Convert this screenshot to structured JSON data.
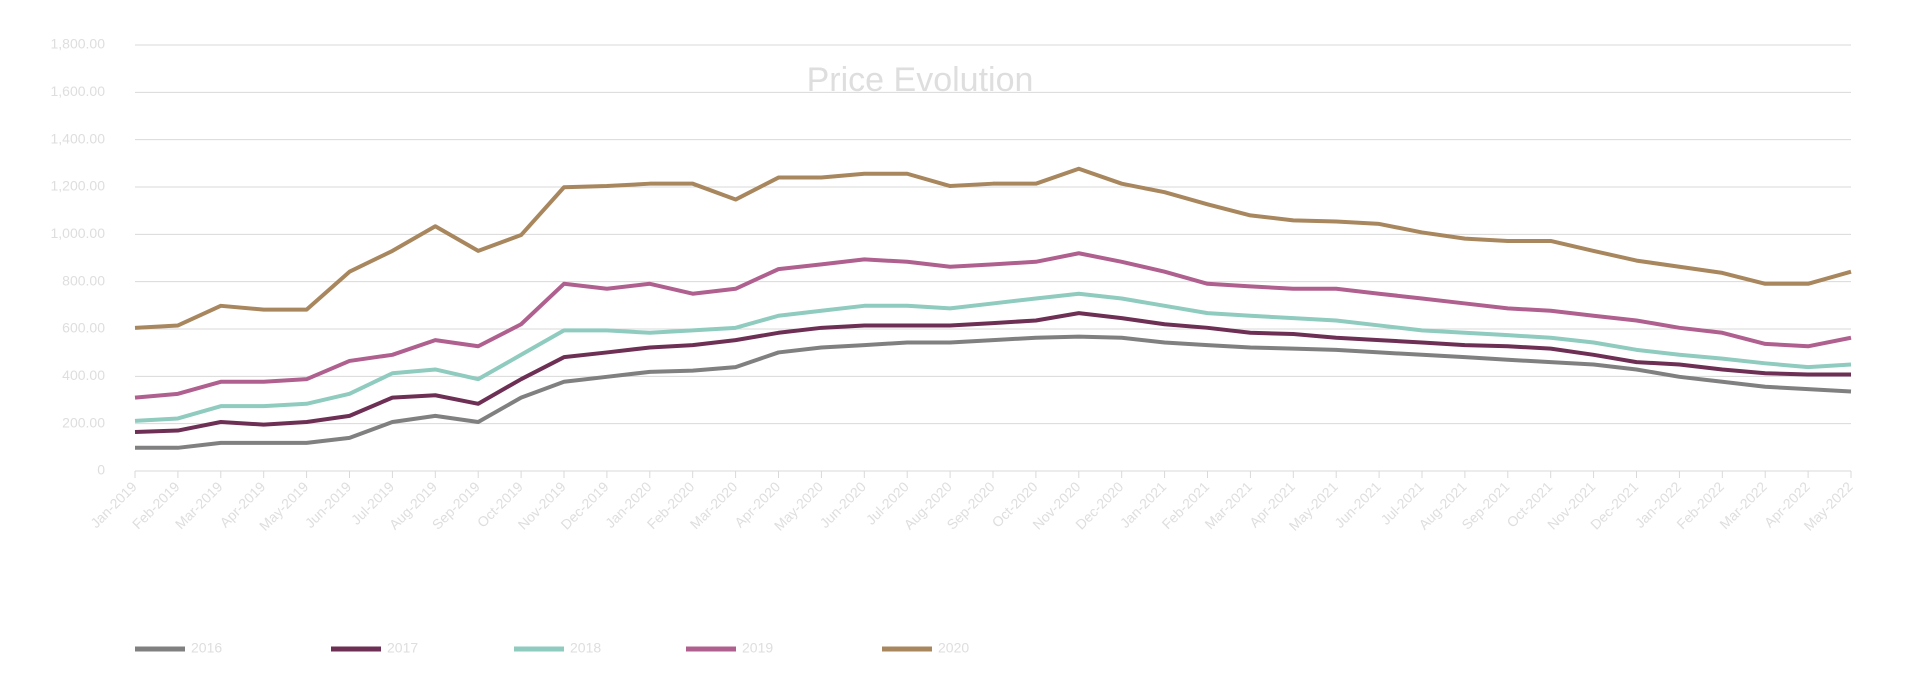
{
  "chart_data": {
    "type": "line",
    "title": "Price Evolution",
    "categories": [
      "Jan-2019",
      "Feb-2019",
      "Mar-2019",
      "Apr-2019",
      "May-2019",
      "Jun-2019",
      "Jul-2019",
      "Aug-2019",
      "Sep-2019",
      "Oct-2019",
      "Nov-2019",
      "Dec-2019",
      "Jan-2020",
      "Feb-2020",
      "Mar-2020",
      "Apr-2020",
      "May-2020",
      "Jun-2020",
      "Jul-2020",
      "Aug-2020",
      "Sep-2020",
      "Oct-2020",
      "Nov-2020",
      "Dec-2020",
      "Jan-2021",
      "Feb-2021",
      "Mar-2021",
      "Apr-2021",
      "May-2021",
      "Jun-2021",
      "Jul-2021",
      "Aug-2021",
      "Sep-2021",
      "Oct-2021",
      "Nov-2021",
      "Dec-2021",
      "Jan-2022",
      "Feb-2022",
      "Mar-2022",
      "Apr-2022",
      "May-2022"
    ],
    "series": [
      {
        "name": "2016",
        "color": "#808080",
        "values": [
          98,
          98,
          119,
          119,
          119,
          140,
          207,
          233,
          207,
          310,
          377,
          398,
          419,
          424,
          439,
          501,
          522,
          532,
          543,
          543,
          553,
          563,
          568,
          563,
          543,
          532,
          522,
          517,
          512,
          501,
          491,
          481,
          470,
          460,
          450,
          429,
          398,
          377,
          356,
          346,
          336
        ]
      },
      {
        "name": "2017",
        "color": "#6e2f55",
        "values": [
          165,
          171,
          207,
          196,
          207,
          233,
          310,
          320,
          284,
          388,
          481,
          501,
          522,
          532,
          553,
          584,
          605,
          615,
          615,
          615,
          625,
          636,
          667,
          646,
          620,
          605,
          584,
          579,
          563,
          553,
          543,
          532,
          527,
          517,
          491,
          460,
          450,
          429,
          413,
          408,
          408
        ]
      },
      {
        "name": "2018",
        "color": "#8fcbbf",
        "values": [
          212,
          222,
          274,
          274,
          284,
          326,
          413,
          429,
          388,
          491,
          594,
          594,
          584,
          594,
          605,
          656,
          677,
          698,
          698,
          687,
          708,
          729,
          749,
          729,
          698,
          667,
          656,
          646,
          636,
          615,
          594,
          584,
          574,
          563,
          543,
          512,
          491,
          475,
          455,
          439,
          450
        ]
      },
      {
        "name": "2019",
        "color": "#b0608f",
        "values": [
          310,
          326,
          377,
          377,
          388,
          465,
          491,
          553,
          527,
          620,
          791,
          770,
          791,
          749,
          770,
          853,
          873,
          894,
          884,
          863,
          873,
          884,
          920,
          884,
          842,
          791,
          780,
          770,
          770,
          749,
          729,
          708,
          687,
          677,
          656,
          636,
          605,
          584,
          537,
          527,
          563
        ]
      },
      {
        "name": "2020",
        "color": "#a8875e",
        "values": [
          605,
          615,
          698,
          682,
          682,
          842,
          930,
          1034,
          930,
          997,
          1199,
          1204,
          1214,
          1214,
          1147,
          1240,
          1240,
          1256,
          1256,
          1204,
          1214,
          1214,
          1277,
          1214,
          1178,
          1127,
          1080,
          1059,
          1054,
          1044,
          1008,
          982,
          972,
          972,
          930,
          889,
          863,
          837,
          791,
          791,
          842
        ]
      }
    ],
    "ylim": [
      0,
      1800
    ],
    "yticks": [
      0,
      {
        "value": 200,
        "label": "200.00"
      },
      {
        "value": 400,
        "label": "400.00"
      },
      {
        "value": 600,
        "label": "600.00"
      },
      {
        "value": 800,
        "label": "800.00"
      },
      {
        "value": 1000,
        "label": "1,000.00"
      },
      {
        "value": 1200,
        "label": "1,200.00"
      },
      {
        "value": 1400,
        "label": "1,400.00"
      },
      {
        "value": 1600,
        "label": "1,600.00"
      },
      {
        "value": 1800,
        "label": "1,800.00"
      }
    ],
    "grid": true
  }
}
